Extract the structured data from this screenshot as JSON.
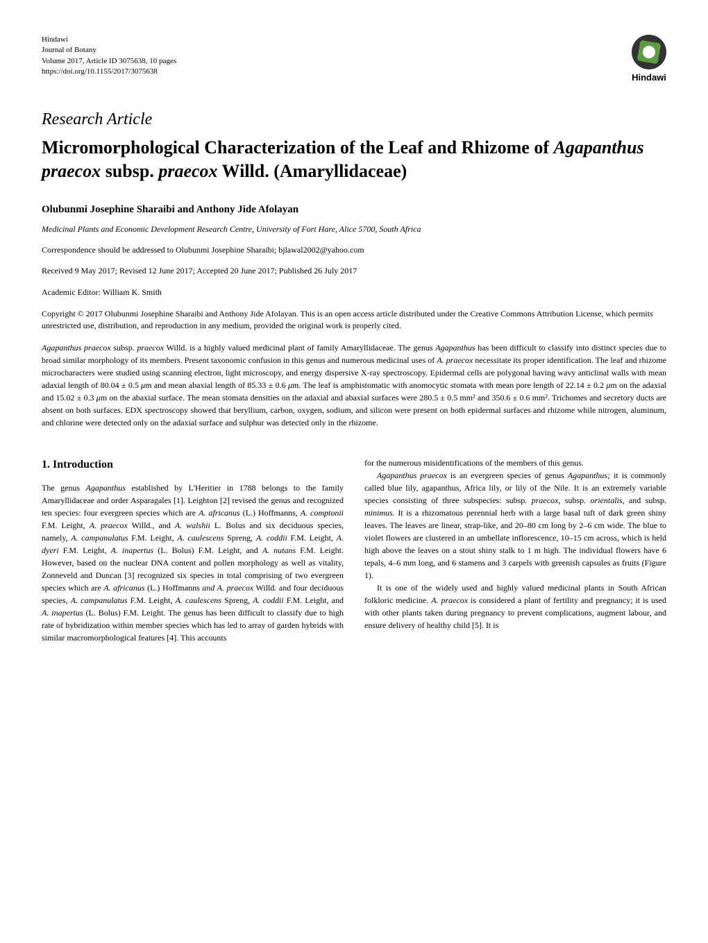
{
  "journal": {
    "publisher": "Hindawi",
    "name": "Journal of Botany",
    "volume": "Volume 2017, Article ID 3075638, 10 pages",
    "doi": "https://doi.org/10.1155/2017/3075638",
    "logo_name": "Hindawi"
  },
  "article": {
    "type": "Research Article",
    "title_plain": "Micromorphological Characterization of the Leaf and Rhizome of Agapanthus praecox subsp. praecox Willd. (Amaryllidaceae)",
    "authors": "Olubunmi Josephine Sharaibi and Anthony Jide Afolayan",
    "affiliation": "Medicinal Plants and Economic Development Research Centre, University of Fort Hare, Alice 5700, South Africa",
    "correspondence": "Correspondence should be addressed to Olubunmi Josephine Sharaibi; bjlawal2002@yahoo.com",
    "received": "Received 9 May 2017; Revised 12 June 2017; Accepted 20 June 2017; Published 26 July 2017",
    "editor": "Academic Editor: William K. Smith",
    "copyright": "Copyright © 2017 Olubunmi Josephine Sharaibi and Anthony Jide Afolayan. This is an open access article distributed under the Creative Commons Attribution License, which permits unrestricted use, distribution, and reproduction in any medium, provided the original work is properly cited."
  },
  "section": {
    "intro_title": "1. Introduction"
  },
  "colors": {
    "text": "#000000",
    "background": "#ffffff",
    "logo_bg": "#333333",
    "logo_green": "#5a9e3f"
  },
  "fonts": {
    "body_family": "Times New Roman",
    "title_size_pt": 26,
    "section_size_pt": 16,
    "body_size_pt": 12,
    "journal_info_size_pt": 11
  }
}
